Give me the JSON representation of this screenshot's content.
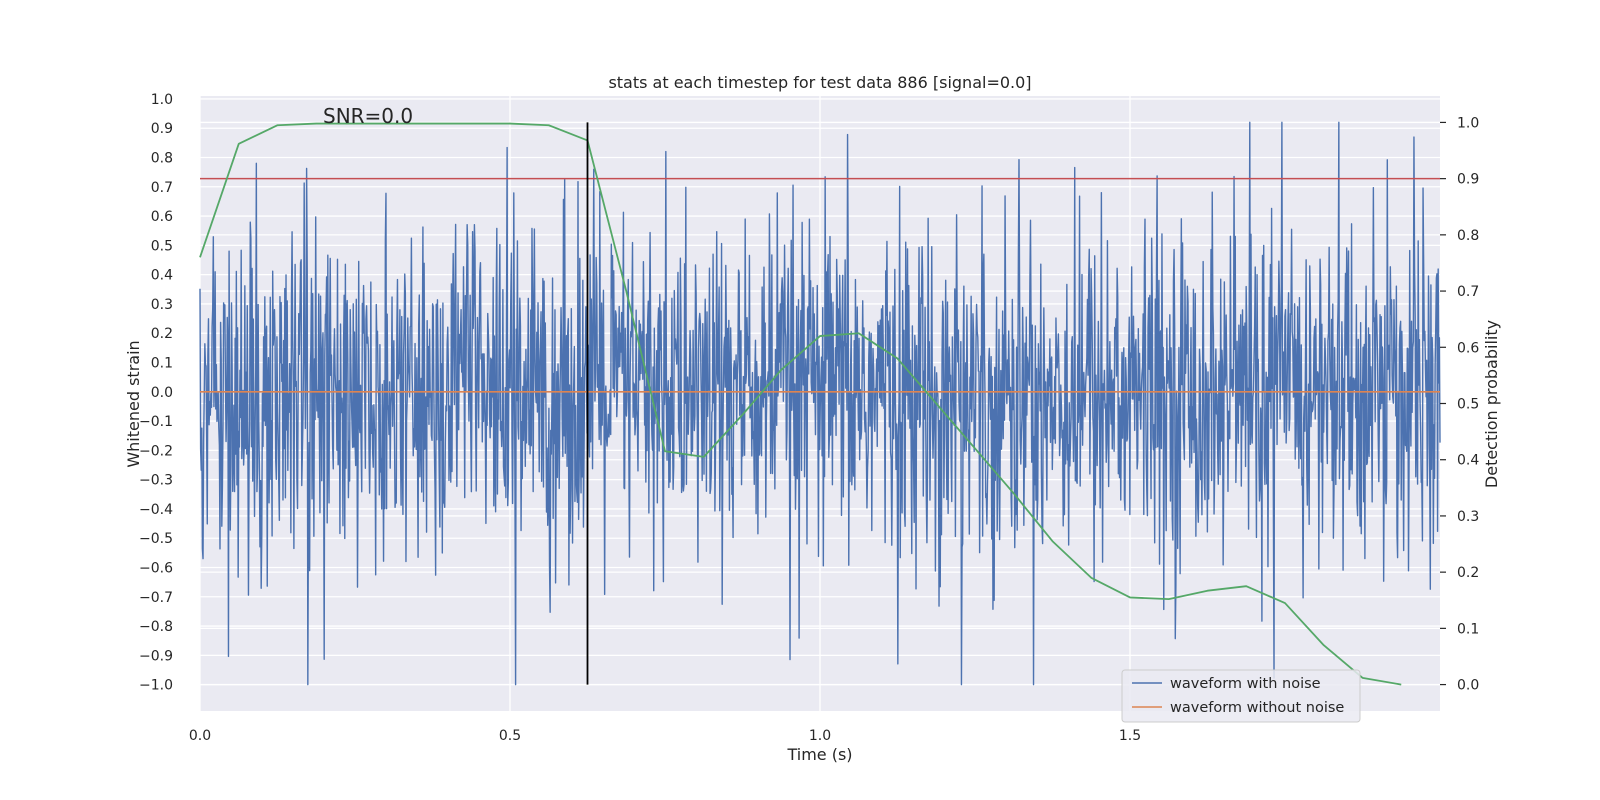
{
  "chart_data": {
    "type": "line",
    "title": "stats at each timestep for test data 886 [signal=0.0]",
    "xlabel": "Time (s)",
    "ylabel": "Whitened strain",
    "y2label": "Detection probability",
    "xlim": [
      0,
      2.0
    ],
    "ylim": [
      -1.09,
      1.01
    ],
    "y2lim": [
      -0.047,
      1.047
    ],
    "xticks": [
      0.0,
      0.5,
      1.0,
      1.5
    ],
    "xtick_labels": [
      "0.0",
      "0.5",
      "1.0",
      "1.5"
    ],
    "yticks": [
      1.0,
      0.9,
      0.8,
      0.7,
      0.6,
      0.5,
      0.4,
      0.3,
      0.2,
      0.1,
      0.0,
      -0.1,
      -0.2,
      -0.3,
      -0.4,
      -0.5,
      -0.6,
      -0.7,
      -0.8,
      -0.9,
      -1.0
    ],
    "ytick_labels": [
      "1.0",
      "0.9",
      "0.8",
      "0.7",
      "0.6",
      "0.5",
      "0.4",
      "0.3",
      "0.2",
      "0.1",
      "0.0",
      "−0.1",
      "−0.2",
      "−0.3",
      "−0.4",
      "−0.5",
      "−0.6",
      "−0.7",
      "−0.8",
      "−0.9",
      "−1.0"
    ],
    "y2ticks": [
      1.0,
      0.9,
      0.8,
      0.7,
      0.6,
      0.5,
      0.4,
      0.3,
      0.2,
      0.1,
      0.0
    ],
    "y2tick_labels": [
      "1.0",
      "0.9",
      "0.8",
      "0.7",
      "0.6",
      "0.5",
      "0.4",
      "0.3",
      "0.2",
      "0.1",
      "0.0"
    ],
    "grid": true,
    "legend_position": "bottom-right",
    "annotation": "SNR=0.0",
    "series": [
      {
        "name": "waveform with noise",
        "color": "#4c72b0",
        "axis": "left",
        "kind": "noise",
        "x_range": [
          0,
          2.0
        ],
        "amplitude_range": [
          -1.0,
          0.92
        ],
        "samples": 2048
      },
      {
        "name": "waveform without noise",
        "color": "#dd8452",
        "axis": "left",
        "x": [
          0,
          2.0
        ],
        "y": [
          0.0,
          0.0
        ]
      },
      {
        "name": "detection probability",
        "color": "#55a868",
        "axis": "right",
        "x": [
          0.0,
          0.0625,
          0.125,
          0.1875,
          0.25,
          0.3125,
          0.375,
          0.4375,
          0.5,
          0.5625,
          0.625,
          0.6875,
          0.75,
          0.8125,
          0.875,
          0.9375,
          1.0,
          1.0625,
          1.125,
          1.1875,
          1.25,
          1.3125,
          1.375,
          1.4375,
          1.5,
          1.5625,
          1.625,
          1.6875,
          1.75,
          1.8125,
          1.875,
          1.9375
        ],
        "y": [
          0.76,
          0.962,
          0.995,
          0.998,
          0.998,
          0.998,
          0.998,
          0.998,
          0.998,
          0.995,
          0.968,
          0.7,
          0.415,
          0.405,
          0.48,
          0.56,
          0.62,
          0.625,
          0.58,
          0.5,
          0.42,
          0.34,
          0.255,
          0.19,
          0.155,
          0.152,
          0.167,
          0.175,
          0.145,
          0.07,
          0.012,
          0.0
        ]
      },
      {
        "name": "threshold",
        "color": "#c44e52",
        "axis": "right",
        "x": [
          0,
          2.0
        ],
        "y": [
          0.9,
          0.9
        ]
      },
      {
        "name": "current timestep",
        "color": "#000000",
        "axis": "left",
        "x": [
          0.625,
          0.625
        ],
        "y": [
          -1.0,
          0.92
        ]
      }
    ]
  }
}
